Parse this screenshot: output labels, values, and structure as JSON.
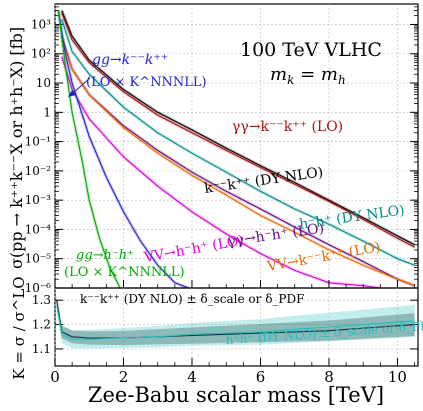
{
  "chart_data": [
    {
      "type": "line",
      "title": "100 TeV VLHC",
      "subtitle": "m_k = m_h",
      "ylabel": "σ(pp → k⁺⁺k⁻⁻X or h⁺h⁻X) [fb]",
      "xlabel": "",
      "xlim": [
        0,
        10.6
      ],
      "ylim": [
        1e-06,
        5000
      ],
      "yscale": "log",
      "grid": true,
      "x_ticks": [
        "0",
        "2",
        "4",
        "6",
        "8",
        "10"
      ],
      "y_ticks": [
        "10⁻⁶",
        "10⁻⁵",
        "10⁻⁴",
        "10⁻³",
        "10⁻²",
        "10⁻¹",
        "1",
        "10",
        "10²",
        "10³"
      ],
      "annotations": [
        {
          "text": "gg→k⁻⁻k⁺⁺",
          "sub": "(LO × K^NNNLL)",
          "color": "#2222cc"
        },
        {
          "text": "γγ→k⁻⁻k⁺⁺ (LO)",
          "color": "#aa1111"
        },
        {
          "text": "k⁻⁻k⁺⁺ (DY NLO)",
          "color": "#000000"
        },
        {
          "text": "h⁻h⁺ (DY NLO)",
          "color": "#008b8b"
        },
        {
          "text": "γγ→h⁻h⁺ (LO)",
          "color": "#6a0d83"
        },
        {
          "text": "VV→h⁻h⁺ (LO)",
          "color": "#dd00dd"
        },
        {
          "text": "VV→k⁻⁻k⁺⁺ (LO)",
          "color": "#ee6600"
        },
        {
          "text": "gg→h⁻h⁺",
          "sub": "(LO × K^NNNLL)",
          "color": "#00aa00"
        }
      ],
      "series": [
        {
          "name": "k⁻⁻k⁺⁺ (DY NLO)",
          "color": "#000000",
          "x": [
            0.2,
            0.5,
            1,
            2,
            3,
            4,
            5,
            6,
            7,
            8,
            9,
            10,
            10.5
          ],
          "y": [
            3000,
            400,
            60,
            6,
            1,
            0.25,
            0.06,
            0.015,
            0.004,
            0.001,
            0.00025,
            6e-05,
            3e-05
          ]
        },
        {
          "name": "γγ→k⁻⁻k⁺⁺ (LO)",
          "color": "#aa1111",
          "x": [
            0.2,
            0.5,
            1,
            2,
            3,
            4,
            5,
            6,
            7,
            8,
            9,
            10,
            10.5
          ],
          "y": [
            2500,
            300,
            50,
            5,
            0.8,
            0.2,
            0.05,
            0.013,
            0.0035,
            0.0009,
            0.00022,
            5e-05,
            2.5e-05
          ]
        },
        {
          "name": "h⁻h⁺ (DY NLO)",
          "color": "#008b8b",
          "x": [
            0.2,
            0.5,
            1,
            2,
            3,
            4,
            5,
            6,
            7,
            8,
            9,
            10,
            10.5
          ],
          "y": [
            1500,
            120,
            20,
            1.5,
            0.2,
            0.04,
            0.009,
            0.002,
            0.0005,
            0.00015,
            4e-05,
            1e-05,
            6e-06
          ]
        },
        {
          "name": "γγ→h⁻h⁺ (LO)",
          "color": "#6a0d83",
          "x": [
            0.2,
            0.5,
            1,
            2,
            3,
            4,
            5,
            6,
            7,
            8,
            9,
            10,
            10.5
          ],
          "y": [
            400,
            30,
            4,
            0.35,
            0.05,
            0.009,
            0.002,
            0.0005,
            0.00012,
            3e-05,
            8e-06,
            2e-06,
            1.2e-06
          ]
        },
        {
          "name": "VV→h⁻h⁺ (LO)",
          "color": "#dd00dd",
          "x": [
            0.2,
            0.5,
            1,
            2,
            3,
            4,
            5,
            6,
            7,
            8,
            9,
            9.5
          ],
          "y": [
            80,
            6,
            0.6,
            0.03,
            0.003,
            0.0004,
            7e-05,
            1.5e-05,
            4e-06,
            1.5e-06,
            1.2e-06,
            1e-06
          ]
        },
        {
          "name": "VV→k⁻⁻k⁺⁺ (LO)",
          "color": "#ee6600",
          "x": [
            0.2,
            0.5,
            1,
            2,
            3,
            4,
            5,
            6,
            7,
            8,
            9,
            10,
            10.5
          ],
          "y": [
            300,
            30,
            4,
            0.3,
            0.04,
            0.007,
            0.0015,
            0.0003,
            8e-05,
            2e-05,
            6e-06,
            2e-06,
            1.2e-06
          ]
        },
        {
          "name": "gg→k⁻⁻k⁺⁺ (LO × K^NNNLL)",
          "color": "#2222cc",
          "x": [
            0.1,
            0.3,
            0.5,
            1,
            1.5,
            2,
            2.5,
            3,
            3.5,
            3.9
          ],
          "y": [
            3000,
            100,
            10,
            0.15,
            0.006,
            0.0004,
            4e-05,
            6e-06,
            1.5e-06,
            1e-06
          ]
        },
        {
          "name": "gg→h⁻h⁺ (LO × K^NNNLL)",
          "color": "#00aa00",
          "x": [
            0.1,
            0.3,
            0.5,
            0.8,
            1,
            1.3,
            1.6,
            1.9
          ],
          "y": [
            3000,
            40,
            1,
            0.02,
            0.001,
            5e-05,
            5e-06,
            1e-06
          ]
        }
      ]
    },
    {
      "type": "line",
      "ylabel": "K = σ / σ^LO",
      "xlabel": "Zee-Babu scalar mass [TeV]",
      "xlim": [
        0,
        10.6
      ],
      "ylim": [
        1.03,
        1.35
      ],
      "grid": true,
      "x_ticks": [
        "0",
        "2",
        "4",
        "6",
        "8",
        "10"
      ],
      "y_ticks": [
        "1.1",
        "1.2",
        "1.3"
      ],
      "annotations": [
        {
          "text": "k⁻⁻k⁺⁺ (DY NLO) ± δ_scale or δ_PDF",
          "color": "#000000"
        },
        {
          "text": "h⁻h⁺ (DY NLO) ± δ_scale or δ_PDF",
          "color": "#20c0c0"
        }
      ],
      "series": [
        {
          "name": "k⁻⁻k⁺⁺ (DY NLO)",
          "color": "#000000",
          "x": [
            0.05,
            0.2,
            0.5,
            1,
            2,
            3,
            4,
            5,
            6,
            7,
            8,
            9,
            10,
            10.5
          ],
          "y": [
            1.3,
            1.17,
            1.15,
            1.145,
            1.145,
            1.15,
            1.155,
            1.16,
            1.165,
            1.17,
            1.175,
            1.185,
            1.195,
            1.2
          ]
        },
        {
          "name": "h⁻h⁺ (DY NLO)",
          "color": "#20c0c0",
          "x": [
            0.05,
            0.2,
            0.5,
            1,
            2,
            3,
            4,
            5,
            6,
            7,
            8,
            9,
            10,
            10.5
          ],
          "y": [
            1.28,
            1.16,
            1.14,
            1.14,
            1.145,
            1.15,
            1.16,
            1.165,
            1.17,
            1.18,
            1.19,
            1.2,
            1.21,
            1.215
          ]
        }
      ]
    }
  ]
}
